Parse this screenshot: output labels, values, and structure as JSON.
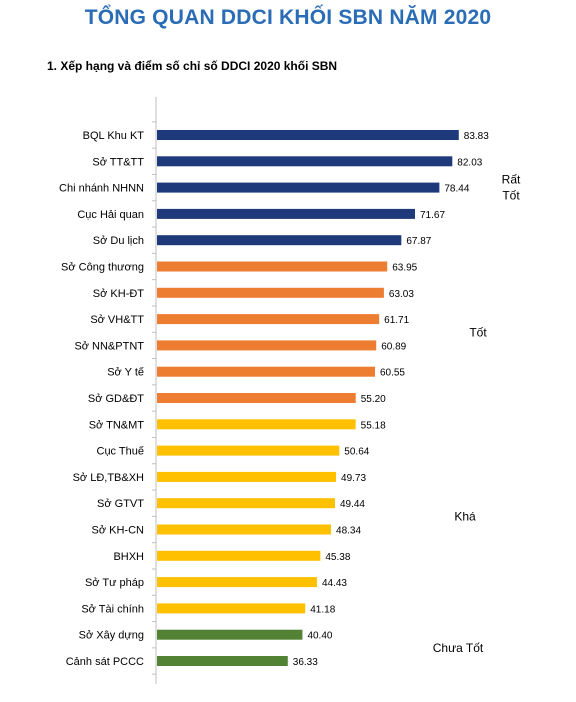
{
  "header": {
    "title": "TỔNG QUAN DDCI KHỐI SBN NĂM 2020",
    "subtitle": "1. Xếp hạng và điểm số chỉ số DDCI 2020 khối SBN"
  },
  "colors": {
    "title": "#2a6cb5",
    "rat_tot": "#1f3a7a",
    "tot": "#ed7d31",
    "kha": "#ffc000",
    "chua_tot": "#548235",
    "axis": "#bfbfbf"
  },
  "chart_data": {
    "type": "bar",
    "orientation": "horizontal",
    "title": "1. Xếp hạng và điểm số chỉ số DDCI 2020 khối SBN",
    "xlabel": "",
    "ylabel": "",
    "xlim": [
      0,
      90
    ],
    "grid": false,
    "categories": [
      "BQL Khu KT",
      "Sở TT&TT",
      "Chi nhánh NHNN",
      "Cục Hải quan",
      "Sở Du lịch",
      "Sở Công thương",
      "Sở KH-ĐT",
      "Sở VH&TT",
      "Sở NN&PTNT",
      "Sở Y tế",
      "Sở GD&ĐT",
      "Sở TN&MT",
      "Cục Thuế",
      "Sở LĐ,TB&XH",
      "Sở GTVT",
      "Sở KH-CN",
      "BHXH",
      "Sở Tư pháp",
      "Sở Tài chính",
      "Sở Xây dựng",
      "Cảnh sát PCCC"
    ],
    "values": [
      83.83,
      82.03,
      78.44,
      71.67,
      67.87,
      63.95,
      63.03,
      61.71,
      60.89,
      60.55,
      55.2,
      55.18,
      50.64,
      49.73,
      49.44,
      48.34,
      45.38,
      44.43,
      41.18,
      40.4,
      36.33
    ],
    "value_labels": [
      "83.83",
      "82.03",
      "78.44",
      "71.67",
      "67.87",
      "63.95",
      "63.03",
      "61.71",
      "60.89",
      "60.55",
      "55.20",
      "55.18",
      "50.64",
      "49.73",
      "49.44",
      "48.34",
      "45.38",
      "44.43",
      "41.18",
      "40.40",
      "36.33"
    ],
    "groups": [
      {
        "label_lines": [
          "Rất",
          "Tốt"
        ],
        "color_key": "rat_tot",
        "start": 0,
        "end": 4
      },
      {
        "label_lines": [
          "Tốt"
        ],
        "color_key": "tot",
        "start": 5,
        "end": 10
      },
      {
        "label_lines": [
          "Khá"
        ],
        "color_key": "kha",
        "start": 11,
        "end": 18
      },
      {
        "label_lines": [
          "Chưa Tốt"
        ],
        "color_key": "chua_tot",
        "start": 19,
        "end": 20
      }
    ]
  }
}
